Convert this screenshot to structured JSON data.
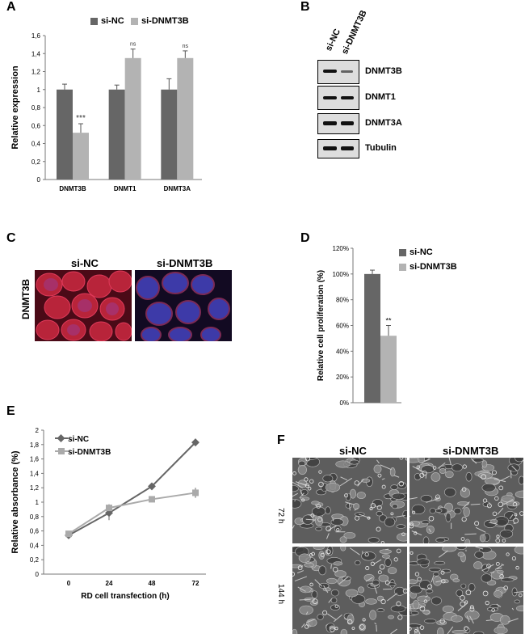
{
  "panels": {
    "A": "A",
    "B": "B",
    "C": "C",
    "D": "D",
    "E": "E",
    "F": "F"
  },
  "colors": {
    "si_nc": "#666666",
    "si_dnmt3b": "#b3b3b3",
    "line_si_nc": "#666666",
    "line_si_dnmt3b": "#aaaaaa"
  },
  "panel_a": {
    "legend": [
      "si-NC",
      "si-DNMT3B"
    ],
    "ylabel": "Relative expression",
    "yticks": [
      "0",
      "0,2",
      "0,4",
      "0,6",
      "0,8",
      "1",
      "1,2",
      "1,4",
      "1,6"
    ],
    "annotations": [
      "***",
      "ns",
      "ns"
    ],
    "chart_data": {
      "type": "bar",
      "categories": [
        "DNMT3B",
        "DNMT1",
        "DNMT3A"
      ],
      "series": [
        {
          "name": "si-NC",
          "values": [
            1.0,
            1.0,
            1.0
          ],
          "errors": [
            0.06,
            0.05,
            0.12
          ]
        },
        {
          "name": "si-DNMT3B",
          "values": [
            0.52,
            1.35,
            1.35
          ],
          "errors": [
            0.1,
            0.1,
            0.08
          ]
        }
      ],
      "ylabel": "Relative expression",
      "ylim": [
        0,
        1.6
      ],
      "annotations": [
        "***",
        "ns",
        "ns"
      ]
    }
  },
  "panel_b": {
    "lanes": [
      "si-NC",
      "si-DNMT3B"
    ],
    "blots": [
      "DNMT3B",
      "DNMT1",
      "DNMT3A",
      "Tubulin"
    ]
  },
  "panel_c": {
    "ylabel": "DNMT3B",
    "images": [
      "si-NC",
      "si-DNMT3B"
    ]
  },
  "panel_d": {
    "legend": [
      "si-NC",
      "si-DNMT3B"
    ],
    "ylabel": "Relative cell proliferation (%)",
    "yticks": [
      "0%",
      "20%",
      "40%",
      "60%",
      "80%",
      "100%",
      "120%"
    ],
    "annotation": "**",
    "chart_data": {
      "type": "bar",
      "categories": [
        ""
      ],
      "series": [
        {
          "name": "si-NC",
          "values": [
            100
          ],
          "errors": [
            3
          ]
        },
        {
          "name": "si-DNMT3B",
          "values": [
            52
          ],
          "errors": [
            8
          ]
        }
      ],
      "ylabel": "Relative cell proliferation (%)",
      "ylim": [
        0,
        120
      ]
    }
  },
  "panel_e": {
    "legend": [
      "si-NC",
      "si-DNMT3B"
    ],
    "ylabel": "Relative absorbance (%)",
    "xlabel": "RD cell transfection (h)",
    "yticks": [
      "0",
      "0,2",
      "0,4",
      "0,6",
      "0,8",
      "1",
      "1,2",
      "1,4",
      "1,6",
      "1,8",
      "2"
    ],
    "xticks": [
      "0",
      "24",
      "48",
      "72"
    ],
    "chart_data": {
      "type": "line",
      "x": [
        0,
        24,
        48,
        72
      ],
      "series": [
        {
          "name": "si-NC",
          "values": [
            0.54,
            0.85,
            1.22,
            1.83
          ],
          "errors": [
            0.02,
            0.1,
            0.05,
            0.05
          ]
        },
        {
          "name": "si-DNMT3B",
          "values": [
            0.56,
            0.92,
            1.04,
            1.13
          ],
          "errors": [
            0.02,
            0.05,
            0.04,
            0.07
          ]
        }
      ],
      "xlabel": "RD cell transfection (h)",
      "ylabel": "Relative absorbance (%)",
      "ylim": [
        0,
        2
      ]
    }
  },
  "panel_f": {
    "columns": [
      "si-NC",
      "si-DNMT3B"
    ],
    "rows": [
      "72 h",
      "144 h"
    ]
  }
}
